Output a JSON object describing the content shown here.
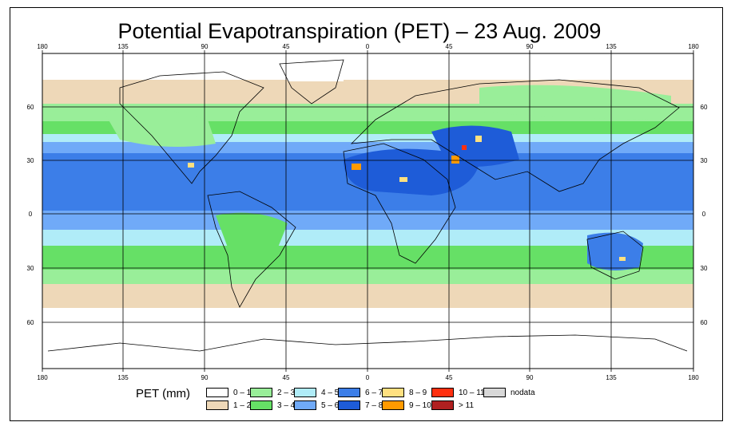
{
  "map": {
    "title": "Potential Evapotranspiration (PET) – 23 Aug. 2009",
    "lon_labels_top": [
      "180",
      "135",
      "90",
      "45",
      "0",
      "45",
      "90",
      "135",
      "180"
    ],
    "lon_labels_bottom": [
      "180",
      "135",
      "90",
      "45",
      "0",
      "45",
      "90",
      "135",
      "180"
    ],
    "lat_labels_left": [
      "60",
      "30",
      "0",
      "30",
      "60"
    ],
    "lat_labels_right": [
      "60",
      "30",
      "0",
      "30",
      "60"
    ],
    "projection": "equirectangular",
    "lon_range": [
      -180,
      180
    ],
    "lat_range": [
      -90,
      90
    ]
  },
  "legend": {
    "title": "PET (mm)",
    "items": [
      {
        "label": "0 – 1",
        "color": "#ffffff"
      },
      {
        "label": "1 – 2",
        "color": "#eed8b8"
      },
      {
        "label": "2 – 3",
        "color": "#99ee99"
      },
      {
        "label": "3 – 4",
        "color": "#66e066"
      },
      {
        "label": "4 – 5",
        "color": "#b0ecf8"
      },
      {
        "label": "5 – 6",
        "color": "#70aaf8"
      },
      {
        "label": "6 – 7",
        "color": "#3c7ee8"
      },
      {
        "label": "7 – 8",
        "color": "#1e5cd8"
      },
      {
        "label": "8 – 9",
        "color": "#ffe080"
      },
      {
        "label": "9 – 10",
        "color": "#ff9a00"
      },
      {
        "label": "10 – 11",
        "color": "#ff3010"
      },
      {
        "label": "> 11",
        "color": "#b02020"
      },
      {
        "label": "nodata",
        "color": "#d8d8d8"
      }
    ]
  }
}
